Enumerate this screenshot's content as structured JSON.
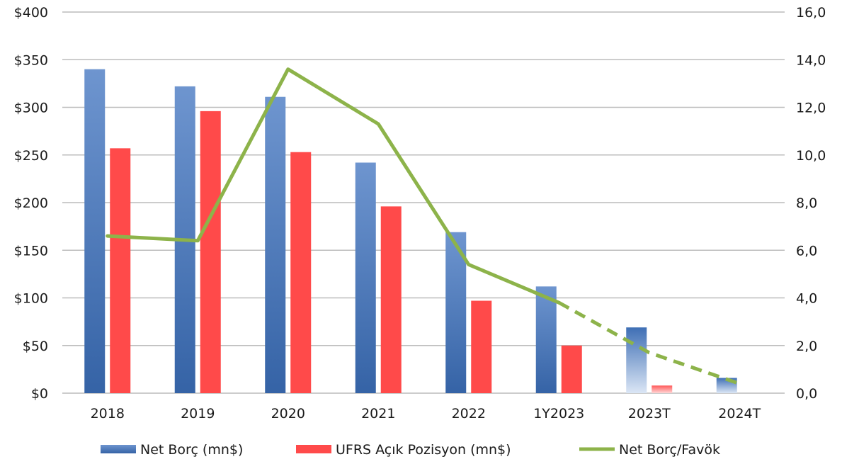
{
  "chart_data": {
    "type": "bar",
    "categories": [
      "2018",
      "2019",
      "2020",
      "2021",
      "2022",
      "1Y2023",
      "2023T",
      "2024T"
    ],
    "series": [
      {
        "name": "Net Borç (mn$)",
        "kind": "bar",
        "axis": "left",
        "color": "#4a78bb",
        "values": [
          340,
          322,
          311,
          242,
          169,
          112,
          69,
          16
        ],
        "faded": [
          false,
          false,
          false,
          false,
          false,
          false,
          true,
          true
        ]
      },
      {
        "name": "UFRS Açık Pozisyon (mn$)",
        "kind": "bar",
        "axis": "left",
        "color": "#ff4a4a",
        "values": [
          257,
          296,
          253,
          196,
          97,
          50,
          8,
          0
        ],
        "faded": [
          false,
          false,
          false,
          false,
          false,
          false,
          true,
          true
        ]
      },
      {
        "name": "Net Borç/Favök",
        "kind": "line",
        "axis": "right",
        "color": "#8db34a",
        "values": [
          6.6,
          6.4,
          13.6,
          11.3,
          5.4,
          3.8,
          1.7,
          0.4
        ],
        "dashed_from_index": 5
      }
    ],
    "y_left": {
      "min": 0,
      "max": 400,
      "ticks": [
        "$0",
        "$50",
        "$100",
        "$150",
        "$200",
        "$250",
        "$300",
        "$350",
        "$400"
      ]
    },
    "y_right": {
      "min": 0,
      "max": 16,
      "ticks": [
        "0,0",
        "2,0",
        "4,0",
        "6,0",
        "8,0",
        "10,0",
        "12,0",
        "14,0",
        "16,0"
      ]
    },
    "grid": true,
    "legend_position": "bottom",
    "title": "",
    "xlabel": "",
    "ylabel": ""
  }
}
